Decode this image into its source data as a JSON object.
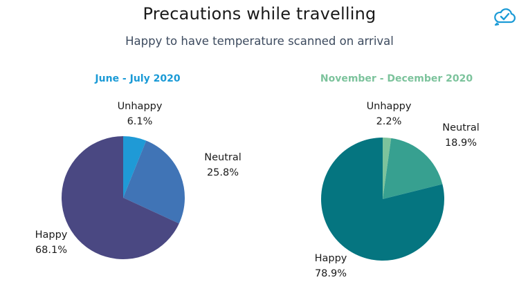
{
  "title": "Precautions while travelling",
  "subtitle": "Happy to have temperature scanned on arrival",
  "icon": "cloud-check-icon",
  "colors": {
    "accent_left": "#1a9ad6",
    "accent_right": "#7cc39c",
    "logo": "#1a9ad6"
  },
  "chart_data": [
    {
      "type": "pie",
      "title": "June - July 2020",
      "categories": [
        "Unhappy",
        "Neutral",
        "Happy"
      ],
      "values": [
        6.1,
        25.8,
        68.1
      ],
      "labels": [
        "6.1%",
        "25.8%",
        "68.1%"
      ],
      "colors": [
        "#1f9ad6",
        "#4074b6",
        "#4a4882"
      ]
    },
    {
      "type": "pie",
      "title": "November - December 2020",
      "categories": [
        "Unhappy",
        "Neutral",
        "Happy"
      ],
      "values": [
        2.2,
        18.9,
        78.9
      ],
      "labels": [
        "2.2%",
        "18.9%",
        "78.9%"
      ],
      "colors": [
        "#7cc39c",
        "#37a090",
        "#057580"
      ]
    }
  ]
}
